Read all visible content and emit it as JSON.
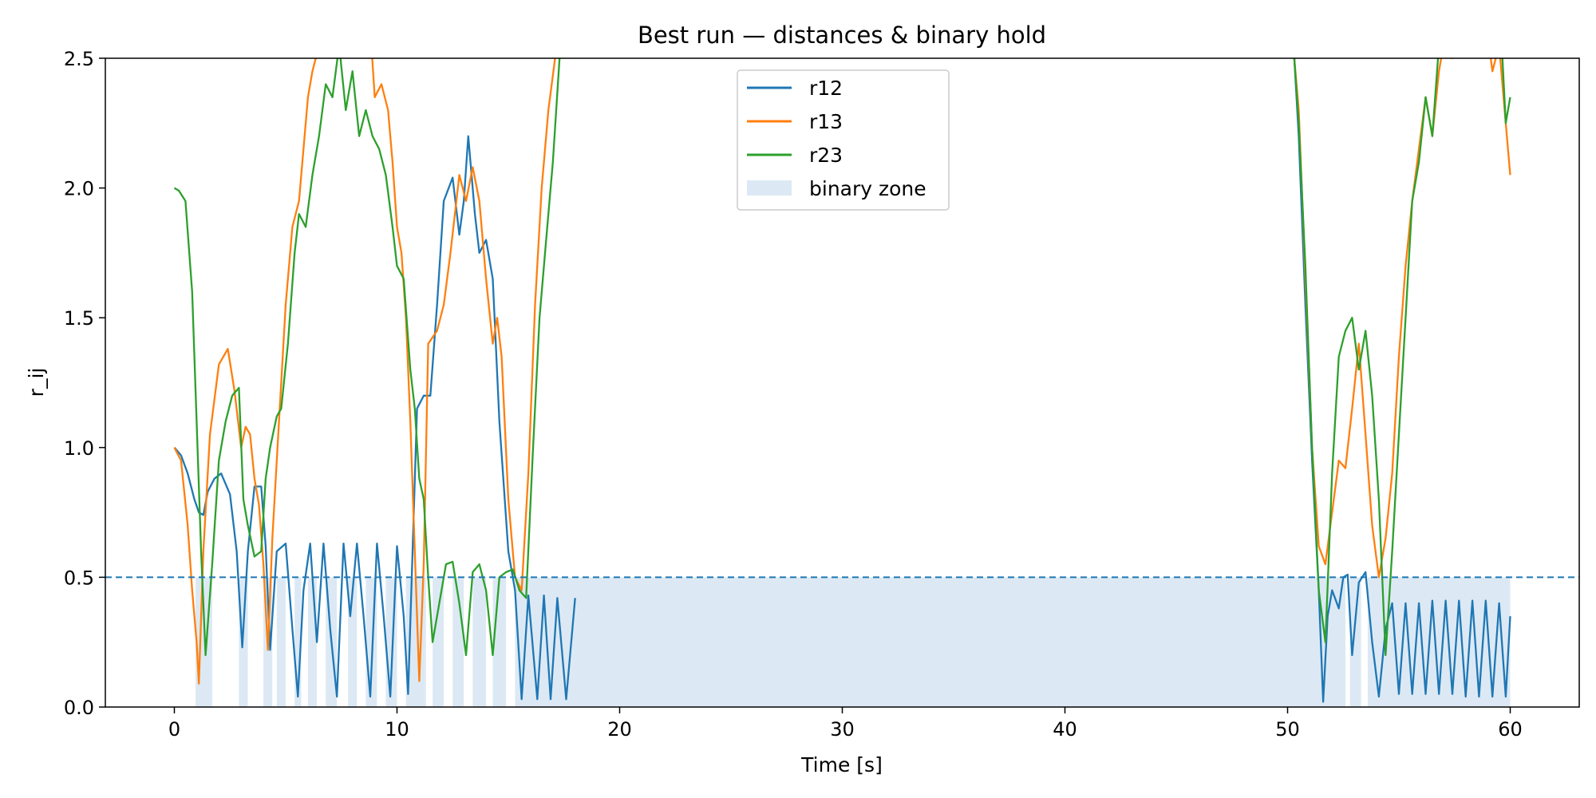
{
  "chart_data": {
    "type": "line",
    "title": "Best run — distances & binary hold",
    "xlabel": "Time [s]",
    "ylabel": "r_ij",
    "xlim": [
      -3.1,
      63.1
    ],
    "ylim": [
      0.0,
      2.5
    ],
    "x_ticks": [
      0,
      10,
      20,
      30,
      40,
      50,
      60
    ],
    "y_ticks": [
      0.0,
      0.5,
      1.0,
      1.5,
      2.0,
      2.5
    ],
    "x_tick_labels": [
      "0",
      "10",
      "20",
      "30",
      "40",
      "50",
      "60"
    ],
    "y_tick_labels": [
      "0.0",
      "0.5",
      "1.0",
      "1.5",
      "2.0",
      "2.5"
    ],
    "grid": false,
    "legend_position": "top-center",
    "threshold": {
      "y": 0.5,
      "style": "dashed",
      "color": "#1f77b4"
    },
    "binary_zone": {
      "name": "binary zone",
      "color": "#dce9f4",
      "y_top": 0.5,
      "intervals": [
        [
          0.95,
          1.7
        ],
        [
          2.9,
          3.3
        ],
        [
          4.0,
          4.4
        ],
        [
          4.6,
          5.0
        ],
        [
          5.4,
          5.7
        ],
        [
          6.0,
          6.4
        ],
        [
          6.8,
          7.3
        ],
        [
          7.8,
          8.2
        ],
        [
          8.6,
          9.1
        ],
        [
          9.5,
          10.0
        ],
        [
          10.4,
          11.3
        ],
        [
          11.6,
          12.1
        ],
        [
          12.5,
          13.0
        ],
        [
          13.4,
          14.0
        ],
        [
          14.3,
          14.9
        ],
        [
          15.3,
          52.6
        ],
        [
          52.8,
          53.3
        ],
        [
          53.6,
          60.0
        ]
      ]
    },
    "series": [
      {
        "name": "r12",
        "color": "#1f77b4",
        "x": [
          0,
          0.3,
          0.6,
          0.9,
          1.1,
          1.3,
          1.5,
          1.8,
          2.1,
          2.5,
          2.8,
          3.05,
          3.3,
          3.6,
          3.9,
          4.1,
          4.3,
          4.6,
          5.0,
          5.3,
          5.55,
          5.8,
          6.1,
          6.4,
          6.7,
          7.0,
          7.3,
          7.6,
          7.9,
          8.2,
          8.5,
          8.8,
          9.1,
          9.4,
          9.7,
          10.0,
          10.3,
          10.5,
          10.9,
          11.2,
          11.5,
          11.8,
          12.1,
          12.5,
          12.8,
          13.0,
          13.2,
          13.5,
          13.7,
          14.0,
          14.3,
          14.6,
          15.0,
          15.3,
          15.6,
          15.9,
          16.3,
          16.6,
          16.9,
          17.2,
          17.6,
          18.0
        ],
        "y": [
          1.0,
          0.97,
          0.9,
          0.8,
          0.75,
          0.74,
          0.83,
          0.88,
          0.9,
          0.82,
          0.6,
          0.23,
          0.6,
          0.85,
          0.85,
          0.62,
          0.22,
          0.6,
          0.63,
          0.3,
          0.04,
          0.45,
          0.63,
          0.25,
          0.63,
          0.3,
          0.04,
          0.63,
          0.35,
          0.63,
          0.35,
          0.04,
          0.63,
          0.35,
          0.04,
          0.62,
          0.35,
          0.05,
          1.15,
          1.2,
          1.2,
          1.55,
          1.95,
          2.04,
          1.82,
          1.95,
          2.2,
          1.9,
          1.75,
          1.8,
          1.65,
          1.1,
          0.6,
          0.45,
          0.03,
          0.43,
          0.03,
          0.43,
          0.03,
          0.42,
          0.03,
          0.42
        ]
      },
      {
        "name": "r13",
        "color": "#ff7f0e",
        "x": [
          0,
          0.3,
          0.6,
          0.8,
          1.0,
          1.1,
          1.3,
          1.6,
          2.0,
          2.4,
          2.7,
          3.0,
          3.2,
          3.4,
          3.6,
          3.8,
          4.0,
          4.2,
          4.4,
          4.7,
          5.0,
          5.3,
          5.6,
          5.8,
          6.0,
          6.2,
          6.5,
          6.7,
          7.0,
          7.3,
          7.5,
          7.7,
          8.0,
          8.3,
          8.7,
          9.0,
          9.3,
          9.6,
          9.8,
          10.0,
          10.2,
          10.4,
          10.6,
          10.8,
          11.0,
          11.2,
          11.4,
          11.8,
          12.1,
          12.4,
          12.8,
          13.1,
          13.4,
          13.7,
          14.0,
          14.3,
          14.5,
          14.7,
          15.0,
          15.3,
          15.6,
          15.9,
          16.2,
          16.5,
          16.8,
          17.1,
          17.4
        ],
        "y": [
          1.0,
          0.95,
          0.7,
          0.45,
          0.25,
          0.09,
          0.6,
          1.05,
          1.32,
          1.38,
          1.22,
          1.0,
          1.08,
          1.05,
          0.88,
          0.78,
          0.55,
          0.22,
          0.65,
          1.1,
          1.55,
          1.85,
          1.95,
          2.15,
          2.35,
          2.45,
          2.55,
          2.7,
          2.9,
          2.85,
          2.7,
          2.55,
          2.6,
          2.55,
          2.75,
          2.35,
          2.4,
          2.3,
          2.1,
          1.85,
          1.75,
          1.5,
          1.1,
          0.6,
          0.1,
          0.55,
          1.4,
          1.45,
          1.55,
          1.75,
          2.05,
          1.95,
          2.08,
          1.95,
          1.65,
          1.4,
          1.5,
          1.35,
          0.8,
          0.5,
          0.45,
          0.9,
          1.55,
          2.0,
          2.3,
          2.5,
          2.8
        ]
      },
      {
        "name": "r23",
        "color": "#2ca02c",
        "x": [
          0,
          0.2,
          0.5,
          0.8,
          1.0,
          1.2,
          1.4,
          1.7,
          2.0,
          2.3,
          2.6,
          2.9,
          3.1,
          3.3,
          3.6,
          3.9,
          4.1,
          4.3,
          4.6,
          4.8,
          5.1,
          5.4,
          5.6,
          5.9,
          6.2,
          6.5,
          6.8,
          7.1,
          7.4,
          7.7,
          8.0,
          8.3,
          8.6,
          8.9,
          9.2,
          9.5,
          9.8,
          10.0,
          10.3,
          10.6,
          10.8,
          11.0,
          11.2,
          11.4,
          11.6,
          11.9,
          12.2,
          12.5,
          12.8,
          13.1,
          13.4,
          13.7,
          14.0,
          14.3,
          14.6,
          14.9,
          15.2,
          15.5,
          15.8,
          16.1,
          16.4,
          16.7,
          17.0,
          17.3
        ],
        "y": [
          2.0,
          1.99,
          1.95,
          1.6,
          1.1,
          0.6,
          0.2,
          0.55,
          0.95,
          1.1,
          1.2,
          1.23,
          0.8,
          0.7,
          0.58,
          0.6,
          0.88,
          1.0,
          1.12,
          1.15,
          1.4,
          1.75,
          1.9,
          1.85,
          2.05,
          2.2,
          2.4,
          2.35,
          2.55,
          2.3,
          2.45,
          2.2,
          2.3,
          2.2,
          2.15,
          2.05,
          1.85,
          1.7,
          1.65,
          1.3,
          1.15,
          0.88,
          0.8,
          0.5,
          0.25,
          0.4,
          0.55,
          0.56,
          0.4,
          0.2,
          0.52,
          0.55,
          0.45,
          0.2,
          0.5,
          0.52,
          0.53,
          0.45,
          0.42,
          0.98,
          1.5,
          1.8,
          2.1,
          2.5
        ]
      },
      {
        "name": "",
        "color": "#1f77b4",
        "x": [
          50.3,
          50.5,
          50.8,
          51.1,
          51.4,
          51.6,
          51.8,
          52.0,
          52.3,
          52.5,
          52.7,
          52.9,
          53.2,
          53.5,
          53.8,
          54.1,
          54.4,
          54.7,
          55.0,
          55.3,
          55.6,
          55.9,
          56.2,
          56.5,
          56.8,
          57.1,
          57.4,
          57.7,
          58.0,
          58.3,
          58.6,
          58.9,
          59.2,
          59.5,
          59.8,
          60.0
        ],
        "y": [
          2.5,
          2.2,
          1.55,
          0.95,
          0.45,
          0.02,
          0.35,
          0.45,
          0.38,
          0.5,
          0.51,
          0.2,
          0.48,
          0.52,
          0.25,
          0.04,
          0.3,
          0.4,
          0.05,
          0.4,
          0.05,
          0.4,
          0.05,
          0.41,
          0.05,
          0.41,
          0.05,
          0.41,
          0.04,
          0.41,
          0.04,
          0.41,
          0.04,
          0.4,
          0.04,
          0.35
        ]
      },
      {
        "name": "",
        "color": "#ff7f0e",
        "x": [
          50.3,
          50.5,
          50.8,
          51.1,
          51.4,
          51.7,
          52.0,
          52.3,
          52.6,
          52.9,
          53.2,
          53.5,
          53.8,
          54.1,
          54.4,
          54.7,
          55.0,
          55.3,
          55.6,
          55.9,
          56.2,
          56.5,
          56.8,
          57.1,
          57.4,
          57.7,
          58.0,
          58.3,
          58.6,
          58.9,
          59.2,
          59.5,
          59.8,
          60.0
        ],
        "y": [
          2.5,
          2.3,
          1.65,
          1.0,
          0.62,
          0.55,
          0.75,
          0.95,
          0.92,
          1.15,
          1.4,
          1.05,
          0.7,
          0.5,
          0.65,
          0.9,
          1.35,
          1.7,
          1.95,
          2.15,
          2.35,
          2.2,
          2.45,
          2.6,
          2.5,
          2.55,
          2.7,
          2.6,
          2.75,
          2.65,
          2.45,
          2.55,
          2.25,
          2.05
        ]
      },
      {
        "name": "",
        "color": "#2ca02c",
        "x": [
          50.3,
          50.5,
          50.8,
          51.1,
          51.4,
          51.7,
          52.0,
          52.3,
          52.6,
          52.9,
          53.2,
          53.5,
          53.8,
          54.1,
          54.4,
          54.7,
          55.0,
          55.3,
          55.6,
          55.9,
          56.2,
          56.5,
          56.8,
          57.1,
          57.4,
          57.7,
          58.0,
          58.3,
          58.6,
          58.9,
          59.2,
          59.5,
          59.8,
          60.0
        ],
        "y": [
          2.5,
          2.25,
          1.7,
          1.0,
          0.45,
          0.25,
          0.9,
          1.35,
          1.45,
          1.5,
          1.3,
          1.45,
          1.2,
          0.8,
          0.2,
          0.6,
          1.05,
          1.5,
          1.95,
          2.1,
          2.35,
          2.2,
          2.55,
          2.7,
          2.6,
          2.75,
          2.6,
          2.8,
          2.7,
          2.85,
          2.55,
          2.75,
          2.25,
          2.35
        ]
      }
    ]
  }
}
